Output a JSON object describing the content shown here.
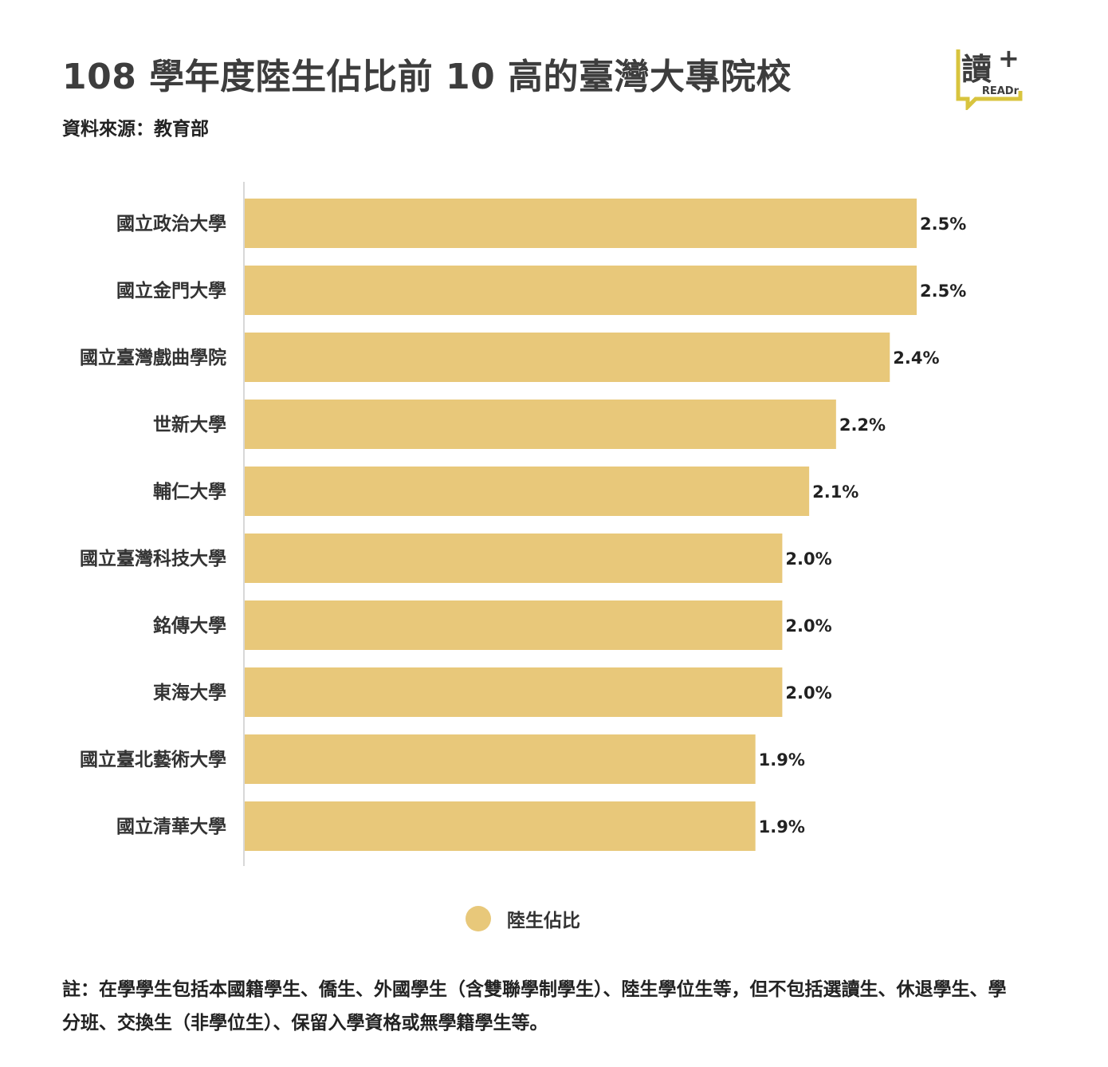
{
  "title": "108 學年度陸生佔比前 10 高的臺灣大專院校",
  "subtitle": "資料來源：教育部",
  "logo": {
    "text": "讀",
    "plus": "+",
    "brand": "READr",
    "color": "#d8c43e"
  },
  "colors": {
    "bar": "#e8c87a",
    "axis": "#cccccc",
    "text": "#333333"
  },
  "chart_data": {
    "type": "bar",
    "orientation": "horizontal",
    "categories": [
      "國立政治大學",
      "國立金門大學",
      "國立臺灣戲曲學院",
      "世新大學",
      "輔仁大學",
      "國立臺灣科技大學",
      "銘傳大學",
      "東海大學",
      "國立臺北藝術大學",
      "國立清華大學"
    ],
    "series": [
      {
        "name": "陸生佔比",
        "values": [
          2.5,
          2.5,
          2.4,
          2.2,
          2.1,
          2.0,
          2.0,
          2.0,
          1.9,
          1.9
        ]
      }
    ],
    "data_labels": [
      "2.5%",
      "2.5%",
      "2.4%",
      "2.2%",
      "2.1%",
      "2.0%",
      "2.0%",
      "2.0%",
      "1.9%",
      "1.9%"
    ],
    "xlim": [
      0,
      2.5
    ],
    "grid": false,
    "legend_position": "bottom-center"
  },
  "legend": {
    "label": "陸生佔比"
  },
  "footnote": "註：在學學生包括本國籍學生、僑生、外國學生（含雙聯學制學生）、陸生學位生等，但不包括選讀生、休退學生、學分班、交換生（非學位生）、保留入學資格或無學籍學生等。"
}
